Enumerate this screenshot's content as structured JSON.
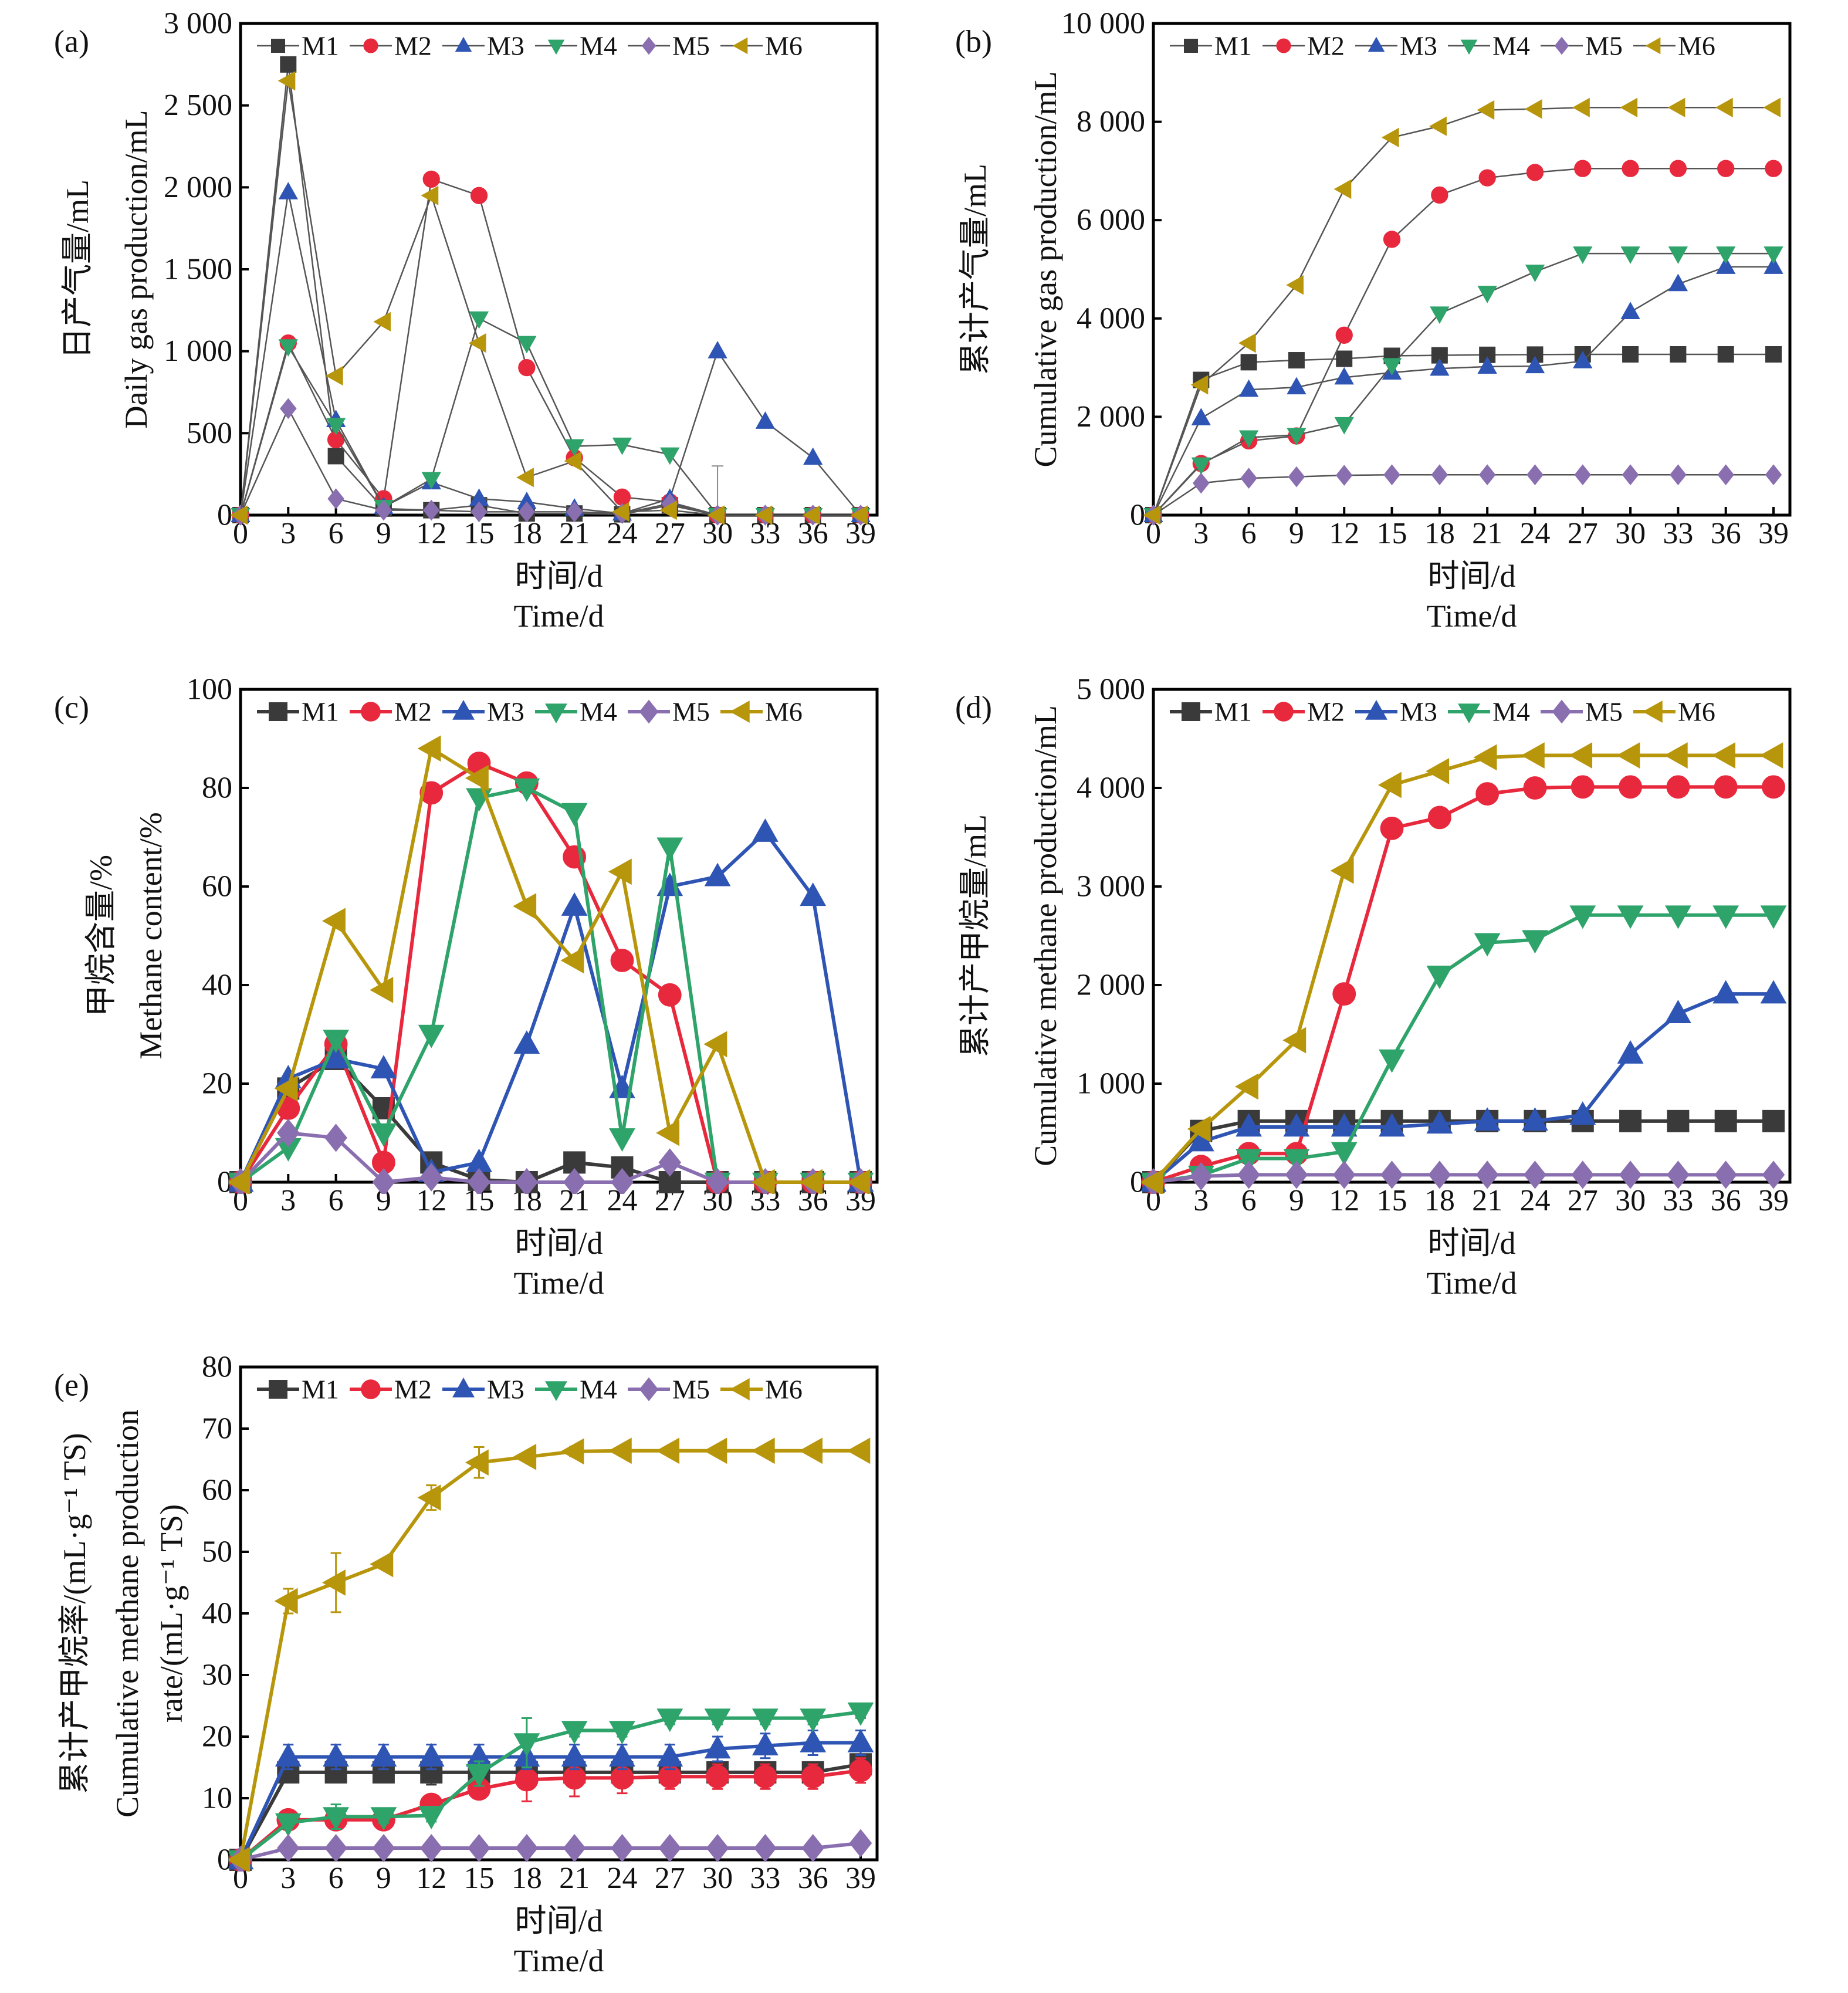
{
  "figure": {
    "panels": [
      "(a)",
      "(b)",
      "(c)",
      "(d)",
      "(e)"
    ]
  },
  "series_styles": {
    "M1": {
      "color": "#3a3a3a",
      "marker": "square"
    },
    "M2": {
      "color": "#e8283c",
      "marker": "circle"
    },
    "M3": {
      "color": "#2f55b4",
      "marker": "triangle-up"
    },
    "M4": {
      "color": "#2ea36a",
      "marker": "triangle-down"
    },
    "M5": {
      "color": "#8a6fb0",
      "marker": "diamond"
    },
    "M6": {
      "color": "#b8960c",
      "marker": "triangle-left"
    }
  },
  "chart_data": [
    {
      "id": "a",
      "panel_label": "(a)",
      "type": "line",
      "ylabel_cn": "日产气量/mL",
      "ylabel": "Daily gas production/mL",
      "xlabel_cn": "时间/d",
      "xlabel": "Time/d",
      "x": [
        0,
        3,
        6,
        9,
        12,
        15,
        18,
        21,
        24,
        27,
        30,
        33,
        36,
        39
      ],
      "xticks": [
        "0",
        "3",
        "6",
        "9",
        "12",
        "15",
        "18",
        "21",
        "24",
        "27",
        "30",
        "33",
        "36",
        "39"
      ],
      "ylim": [
        0,
        3000
      ],
      "yticks": [
        0,
        500,
        1000,
        1500,
        2000,
        2500,
        3000
      ],
      "ytick_labels": [
        "0",
        "500",
        "1 000",
        "1 500",
        "2 000",
        "2 500",
        "3 000"
      ],
      "legend_position": "top",
      "series": [
        {
          "name": "M1",
          "values": [
            0,
            2750,
            360,
            40,
            30,
            60,
            10,
            10,
            5,
            60,
            0,
            0,
            0,
            0
          ]
        },
        {
          "name": "M2",
          "values": [
            0,
            1050,
            460,
            100,
            2050,
            1950,
            900,
            350,
            110,
            80,
            0,
            0,
            0,
            0
          ]
        },
        {
          "name": "M3",
          "values": [
            0,
            1970,
            580,
            50,
            200,
            100,
            80,
            40,
            10,
            100,
            1000,
            570,
            350,
            0
          ]
        },
        {
          "name": "M4",
          "values": [
            0,
            1030,
            550,
            50,
            220,
            1200,
            1050,
            420,
            430,
            370,
            0,
            0,
            0,
            0
          ]
        },
        {
          "name": "M5",
          "values": [
            0,
            650,
            100,
            30,
            30,
            20,
            20,
            20,
            10,
            70,
            0,
            0,
            0,
            0
          ]
        },
        {
          "name": "M6",
          "values": [
            0,
            2650,
            850,
            1180,
            1950,
            1050,
            230,
            330,
            20,
            30,
            0,
            0,
            0,
            0
          ]
        }
      ],
      "error_bars": [
        {
          "series": "M1",
          "x": 30,
          "upper": 300
        }
      ]
    },
    {
      "id": "b",
      "panel_label": "(b)",
      "type": "line",
      "ylabel_cn": "累计产气量/mL",
      "ylabel": "Cumulative gas production/mL",
      "xlabel_cn": "时间/d",
      "xlabel": "Time/d",
      "x": [
        0,
        3,
        6,
        9,
        12,
        15,
        18,
        21,
        24,
        27,
        30,
        33,
        36,
        39
      ],
      "xticks": [
        "0",
        "3",
        "6",
        "9",
        "12",
        "15",
        "18",
        "21",
        "24",
        "27",
        "30",
        "33",
        "36",
        "39"
      ],
      "ylim": [
        0,
        10000
      ],
      "yticks": [
        0,
        2000,
        4000,
        6000,
        8000,
        10000
      ],
      "ytick_labels": [
        "0",
        "2 000",
        "4 000",
        "6 000",
        "8 000",
        "10 000"
      ],
      "legend_position": "top",
      "series": [
        {
          "name": "M1",
          "values": [
            0,
            2750,
            3110,
            3150,
            3180,
            3240,
            3250,
            3260,
            3265,
            3270,
            3270,
            3270,
            3270,
            3270
          ]
        },
        {
          "name": "M2",
          "values": [
            0,
            1050,
            1510,
            1610,
            3660,
            5610,
            6510,
            6860,
            6970,
            7050,
            7050,
            7050,
            7050,
            7050
          ]
        },
        {
          "name": "M3",
          "values": [
            0,
            1970,
            2550,
            2600,
            2800,
            2900,
            2980,
            3020,
            3030,
            3130,
            4130,
            4700,
            5050,
            5050
          ]
        },
        {
          "name": "M4",
          "values": [
            0,
            1030,
            1580,
            1630,
            1850,
            3050,
            4100,
            4520,
            4950,
            5320,
            5320,
            5320,
            5320,
            5320
          ]
        },
        {
          "name": "M5",
          "values": [
            0,
            650,
            750,
            780,
            810,
            820,
            820,
            820,
            820,
            820,
            820,
            820,
            820,
            820
          ]
        },
        {
          "name": "M6",
          "values": [
            0,
            2650,
            3500,
            4680,
            6630,
            7680,
            7910,
            8240,
            8260,
            8290,
            8290,
            8290,
            8290,
            8290
          ]
        }
      ]
    },
    {
      "id": "c",
      "panel_label": "(c)",
      "type": "line",
      "ylabel_cn": "甲烷含量/%",
      "ylabel": "Methane content/%",
      "xlabel_cn": "时间/d",
      "xlabel": "Time/d",
      "x": [
        0,
        3,
        6,
        9,
        12,
        15,
        18,
        21,
        24,
        27,
        30,
        33,
        36,
        39
      ],
      "xticks": [
        "0",
        "3",
        "6",
        "9",
        "12",
        "15",
        "18",
        "21",
        "24",
        "27",
        "30",
        "33",
        "36",
        "39"
      ],
      "ylim": [
        0,
        100
      ],
      "yticks": [
        0,
        20,
        40,
        60,
        80,
        100
      ],
      "ytick_labels": [
        "0",
        "20",
        "40",
        "60",
        "80",
        "100"
      ],
      "legend_position": "top",
      "series": [
        {
          "name": "M1",
          "values": [
            0,
            19,
            25,
            15,
            4,
            0.5,
            0,
            4,
            3,
            0,
            0,
            0,
            0,
            0
          ]
        },
        {
          "name": "M2",
          "values": [
            0,
            15,
            28,
            4,
            79,
            85,
            81,
            66,
            45,
            38,
            0,
            0,
            0,
            0
          ]
        },
        {
          "name": "M3",
          "values": [
            0,
            21,
            25,
            23,
            2,
            4,
            28,
            56,
            19,
            60,
            62,
            71,
            58,
            0
          ]
        },
        {
          "name": "M4",
          "values": [
            0,
            7,
            29,
            10,
            30,
            78,
            80,
            75,
            9,
            68,
            0,
            0,
            0,
            0
          ]
        },
        {
          "name": "M5",
          "values": [
            0,
            10,
            9,
            0,
            1,
            0,
            0,
            0,
            0,
            4,
            0,
            0,
            0,
            0
          ]
        },
        {
          "name": "M6",
          "values": [
            0,
            19,
            53,
            39,
            88,
            82,
            56,
            45,
            63,
            10,
            28,
            0,
            0,
            0
          ]
        }
      ]
    },
    {
      "id": "d",
      "panel_label": "(d)",
      "type": "line",
      "ylabel_cn": "累计产甲烷量/mL",
      "ylabel": "Cumulative methane production/mL",
      "xlabel_cn": "时间/d",
      "xlabel": "Time/d",
      "x": [
        0,
        3,
        6,
        9,
        12,
        15,
        18,
        21,
        24,
        27,
        30,
        33,
        36,
        39
      ],
      "xticks": [
        "0",
        "3",
        "6",
        "9",
        "12",
        "15",
        "18",
        "21",
        "24",
        "27",
        "30",
        "33",
        "36",
        "39"
      ],
      "ylim": [
        0,
        5000
      ],
      "yticks": [
        0,
        1000,
        2000,
        3000,
        4000,
        5000
      ],
      "ytick_labels": [
        "0",
        "1 000",
        "2 000",
        "3 000",
        "4 000",
        "5 000"
      ],
      "legend_position": "top",
      "series": [
        {
          "name": "M1",
          "values": [
            0,
            520,
            620,
            620,
            620,
            620,
            620,
            620,
            620,
            620,
            620,
            620,
            620,
            620
          ]
        },
        {
          "name": "M2",
          "values": [
            0,
            160,
            290,
            290,
            1910,
            3590,
            3700,
            3940,
            4000,
            4010,
            4010,
            4010,
            4010,
            4010
          ]
        },
        {
          "name": "M3",
          "values": [
            0,
            410,
            560,
            560,
            560,
            560,
            590,
            620,
            620,
            680,
            1300,
            1710,
            1910,
            1910
          ]
        },
        {
          "name": "M4",
          "values": [
            0,
            70,
            240,
            240,
            310,
            1250,
            2100,
            2430,
            2460,
            2710,
            2710,
            2710,
            2710,
            2710
          ]
        },
        {
          "name": "M5",
          "values": [
            0,
            60,
            75,
            75,
            75,
            75,
            75,
            75,
            75,
            75,
            75,
            75,
            75,
            75
          ]
        },
        {
          "name": "M6",
          "values": [
            0,
            540,
            970,
            1440,
            3160,
            4030,
            4170,
            4310,
            4330,
            4330,
            4330,
            4330,
            4330,
            4330
          ]
        }
      ]
    },
    {
      "id": "e",
      "panel_label": "(e)",
      "type": "line",
      "ylabel_cn": "累计产甲烷率/(mL·g⁻¹ TS)",
      "ylabel": "Cumulative methane production",
      "ylabel_line2": "rate/(mL·g⁻¹ TS)",
      "xlabel_cn": "时间/d",
      "xlabel": "Time/d",
      "x": [
        0,
        3,
        6,
        9,
        12,
        15,
        18,
        21,
        24,
        27,
        30,
        33,
        36,
        39
      ],
      "xticks": [
        "0",
        "3",
        "6",
        "9",
        "12",
        "15",
        "18",
        "21",
        "24",
        "27",
        "30",
        "33",
        "36",
        "39"
      ],
      "ylim": [
        0,
        80
      ],
      "yticks": [
        0,
        10,
        20,
        30,
        40,
        50,
        60,
        70,
        80
      ],
      "ytick_labels": [
        "0",
        "10",
        "20",
        "30",
        "40",
        "50",
        "60",
        "70",
        "80"
      ],
      "legend_position": "top",
      "series": [
        {
          "name": "M1",
          "values": [
            0,
            14.2,
            14.2,
            14.2,
            14.2,
            14.2,
            14.2,
            14.2,
            14.2,
            14.2,
            14.2,
            14.2,
            14.2,
            15.5
          ],
          "error": [
            0,
            1,
            1,
            1,
            2,
            1,
            1,
            1,
            1,
            1,
            1,
            1,
            1,
            1
          ]
        },
        {
          "name": "M2",
          "values": [
            0,
            6.5,
            6.5,
            6.5,
            9,
            11.5,
            13,
            13.3,
            13.3,
            13.5,
            13.5,
            13.5,
            13.5,
            14.5
          ],
          "error": [
            0,
            0.5,
            0.8,
            0.8,
            1,
            1.5,
            3.5,
            3,
            2.5,
            2,
            2,
            2,
            2,
            2
          ]
        },
        {
          "name": "M3",
          "values": [
            0,
            16.7,
            16.7,
            16.7,
            16.7,
            16.7,
            16.7,
            16.7,
            16.7,
            16.7,
            18,
            18.5,
            19,
            19
          ],
          "error": [
            0,
            2,
            2,
            2,
            2,
            2,
            2,
            2,
            2,
            2,
            2,
            2,
            2,
            2
          ]
        },
        {
          "name": "M4",
          "values": [
            0,
            6,
            7,
            7,
            7.2,
            14,
            19,
            21,
            21,
            23,
            23,
            23,
            23,
            24
          ],
          "error": [
            0,
            0.5,
            2,
            1,
            1,
            2,
            4,
            1,
            1,
            1,
            1,
            1,
            1,
            1
          ]
        },
        {
          "name": "M5",
          "values": [
            0,
            1.9,
            1.9,
            1.9,
            1.9,
            1.9,
            1.9,
            1.9,
            1.9,
            1.9,
            1.9,
            1.9,
            1.9,
            2.7
          ],
          "error": [
            0,
            0.2,
            0.2,
            0.2,
            0.2,
            0.2,
            0.2,
            0.2,
            0.2,
            0.2,
            0.2,
            0.2,
            0.2,
            1
          ]
        },
        {
          "name": "M6",
          "values": [
            0,
            42,
            45,
            48,
            58.8,
            64.5,
            65.4,
            66.3,
            66.4,
            66.4,
            66.4,
            66.4,
            66.4,
            66.4
          ],
          "error": [
            0,
            2,
            4.8,
            0.5,
            2,
            2.5,
            0.5,
            0.8,
            0.5,
            0.5,
            0.5,
            0.5,
            0.5,
            0.5
          ]
        }
      ]
    }
  ]
}
